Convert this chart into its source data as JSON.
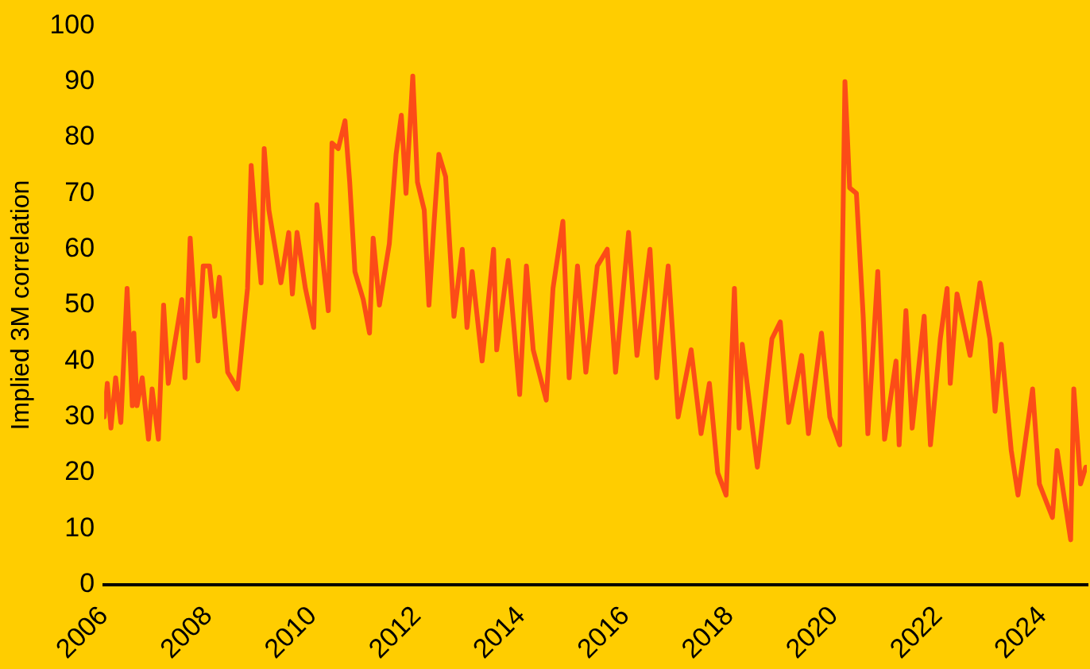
{
  "chart_data": {
    "type": "line",
    "ylabel": "Implied 3M correlation",
    "xlim": [
      2006,
      2024.85
    ],
    "xticks": [
      2006,
      2008,
      2010,
      2012,
      2014,
      2016,
      2018,
      2020,
      2022,
      2024
    ],
    "ylim": [
      0,
      100
    ],
    "yticks": [
      0,
      10,
      20,
      30,
      40,
      50,
      60,
      70,
      80,
      90,
      100
    ],
    "grid": false,
    "legend": false,
    "marker": "none",
    "series": [
      {
        "color": "#fc4c17",
        "x": [
          2006.0,
          2006.06,
          2006.13,
          2006.22,
          2006.32,
          2006.44,
          2006.54,
          2006.57,
          2006.63,
          2006.73,
          2006.85,
          2006.92,
          2007.04,
          2007.14,
          2007.23,
          2007.49,
          2007.55,
          2007.65,
          2007.8,
          2007.9,
          2008.02,
          2008.12,
          2008.21,
          2008.37,
          2008.56,
          2008.75,
          2008.82,
          2008.91,
          2009.01,
          2009.07,
          2009.16,
          2009.39,
          2009.54,
          2009.61,
          2009.7,
          2009.86,
          2010.02,
          2010.08,
          2010.3,
          2010.37,
          2010.49,
          2010.62,
          2010.71,
          2010.81,
          2010.97,
          2011.09,
          2011.16,
          2011.28,
          2011.47,
          2011.6,
          2011.7,
          2011.79,
          2011.92,
          2012.01,
          2012.14,
          2012.23,
          2012.33,
          2012.42,
          2012.55,
          2012.71,
          2012.87,
          2012.96,
          2013.06,
          2013.25,
          2013.47,
          2013.53,
          2013.75,
          2013.97,
          2014.1,
          2014.23,
          2014.48,
          2014.61,
          2014.8,
          2014.92,
          2015.08,
          2015.24,
          2015.46,
          2015.65,
          2015.81,
          2016.06,
          2016.22,
          2016.47,
          2016.6,
          2016.82,
          2017.01,
          2017.26,
          2017.45,
          2017.61,
          2017.77,
          2017.93,
          2018.09,
          2018.18,
          2018.24,
          2018.53,
          2018.81,
          2018.97,
          2019.13,
          2019.38,
          2019.51,
          2019.76,
          2019.92,
          2020.11,
          2020.21,
          2020.3,
          2020.43,
          2020.56,
          2020.65,
          2020.84,
          2020.97,
          2021.19,
          2021.25,
          2021.38,
          2021.5,
          2021.73,
          2021.85,
          2022.04,
          2022.17,
          2022.23,
          2022.36,
          2022.61,
          2022.8,
          2022.99,
          2023.09,
          2023.21,
          2023.4,
          2023.53,
          2023.69,
          2023.81,
          2023.94,
          2024.19,
          2024.28,
          2024.54,
          2024.6,
          2024.73,
          2024.83
        ],
        "values": [
          30,
          36,
          28,
          37,
          29,
          53,
          32,
          45,
          32,
          37,
          26,
          35,
          26,
          50,
          36,
          51,
          37,
          62,
          40,
          57,
          57,
          48,
          55,
          38,
          35,
          53,
          75,
          64,
          54,
          78,
          67,
          54,
          63,
          52,
          63,
          53,
          46,
          68,
          49,
          79,
          78,
          83,
          72,
          56,
          51,
          45,
          62,
          50,
          61,
          77,
          84,
          70,
          91,
          72,
          67,
          50,
          65,
          77,
          73,
          48,
          60,
          46,
          56,
          40,
          60,
          42,
          58,
          34,
          57,
          42,
          33,
          53,
          65,
          37,
          57,
          38,
          57,
          60,
          38,
          63,
          41,
          60,
          37,
          57,
          30,
          42,
          27,
          36,
          20,
          16,
          53,
          28,
          43,
          21,
          44,
          47,
          29,
          41,
          27,
          45,
          30,
          25,
          90,
          71,
          70,
          48,
          27,
          56,
          26,
          40,
          25,
          49,
          28,
          48,
          25,
          44,
          53,
          36,
          52,
          41,
          54,
          44,
          31,
          43,
          24,
          16,
          27,
          35,
          18,
          12,
          24,
          8,
          35,
          18,
          21
        ]
      }
    ]
  }
}
